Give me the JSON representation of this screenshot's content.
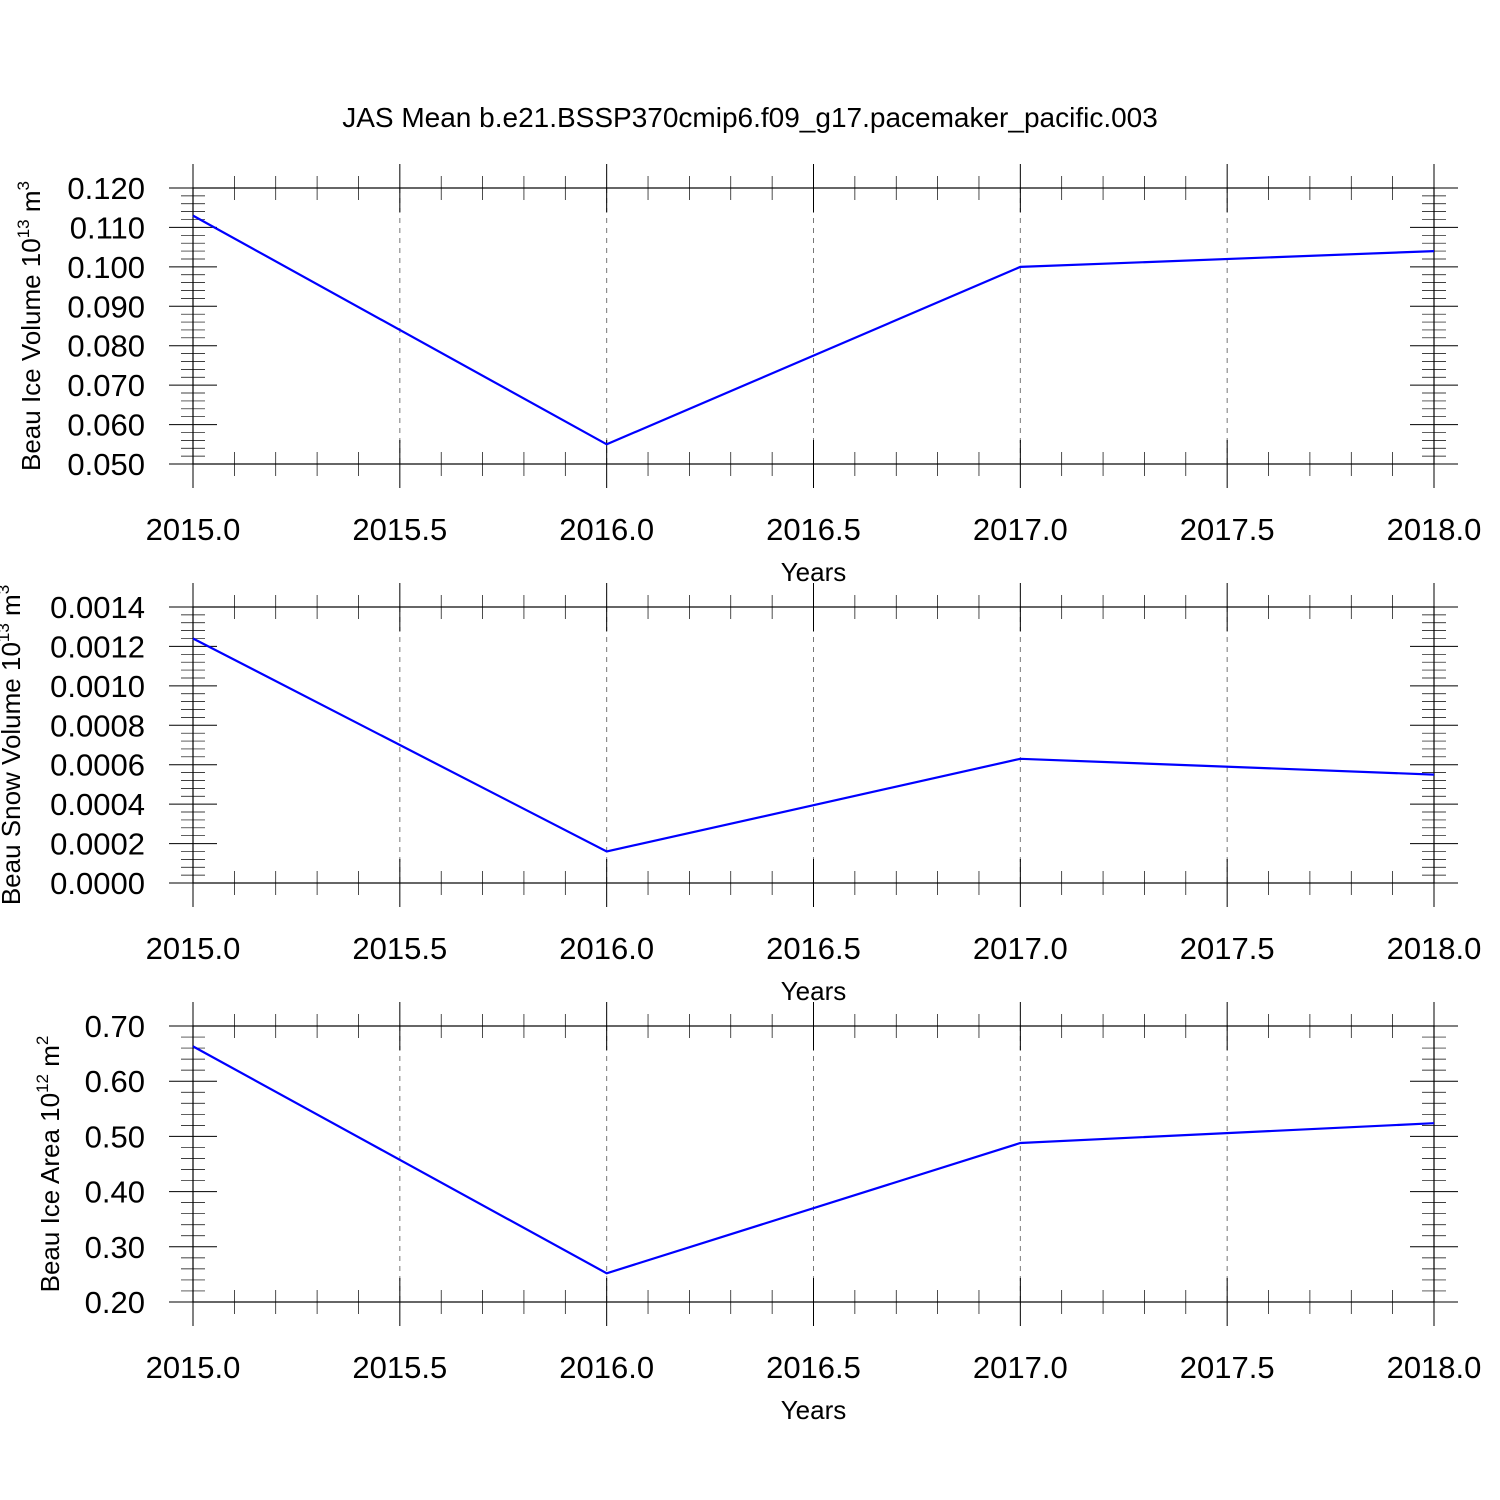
{
  "title": "JAS Mean b.e21.BSSP370cmip6.f09_g17.pacemaker_pacific.003",
  "colors": {
    "series": "#0000ff",
    "grid": "#777777",
    "axes": "#000000"
  },
  "chart_data": [
    {
      "type": "line",
      "ylabel": {
        "text": "Beau Ice Volume 10",
        "exponent": "13",
        "unit": "m",
        "unit_exponent": "3"
      },
      "xlabel": "Years",
      "x": [
        2015.0,
        2016.0,
        2017.0,
        2018.0
      ],
      "series": [
        {
          "values": [
            0.113,
            0.055,
            0.1,
            0.104
          ]
        }
      ],
      "xlim": [
        2015.0,
        2018.0
      ],
      "ylim": [
        0.05,
        0.12
      ],
      "xticks": [
        2015.0,
        2015.5,
        2016.0,
        2016.5,
        2017.0,
        2017.5,
        2018.0
      ],
      "xtick_labels": [
        "2015.0",
        "2015.5",
        "2016.0",
        "2016.5",
        "2017.0",
        "2017.5",
        "2018.0"
      ],
      "yticks": [
        0.05,
        0.06,
        0.07,
        0.08,
        0.09,
        0.1,
        0.11,
        0.12
      ],
      "ytick_labels": [
        "0.050",
        "0.060",
        "0.070",
        "0.080",
        "0.090",
        "0.100",
        "0.110",
        "0.120"
      ],
      "grid": "vertical dashed at x ticks"
    },
    {
      "type": "line",
      "ylabel": {
        "text": "Beau Snow Volume 10",
        "exponent": "13",
        "unit": "m",
        "unit_exponent": "3"
      },
      "xlabel": "Years",
      "x": [
        2015.0,
        2016.0,
        2017.0,
        2018.0
      ],
      "series": [
        {
          "values": [
            0.00124,
            0.00016,
            0.00063,
            0.00055
          ]
        }
      ],
      "xlim": [
        2015.0,
        2018.0
      ],
      "ylim": [
        0.0,
        0.0014
      ],
      "xticks": [
        2015.0,
        2015.5,
        2016.0,
        2016.5,
        2017.0,
        2017.5,
        2018.0
      ],
      "xtick_labels": [
        "2015.0",
        "2015.5",
        "2016.0",
        "2016.5",
        "2017.0",
        "2017.5",
        "2018.0"
      ],
      "yticks": [
        0.0,
        0.0002,
        0.0004,
        0.0006,
        0.0008,
        0.001,
        0.0012,
        0.0014
      ],
      "ytick_labels": [
        "0.0000",
        "0.0002",
        "0.0004",
        "0.0006",
        "0.0008",
        "0.0010",
        "0.0012",
        "0.0014"
      ],
      "grid": "vertical dashed at x ticks"
    },
    {
      "type": "line",
      "ylabel": {
        "text": "Beau Ice Area 10",
        "exponent": "12",
        "unit": "m",
        "unit_exponent": "2"
      },
      "xlabel": "Years",
      "x": [
        2015.0,
        2016.0,
        2017.0,
        2018.0
      ],
      "series": [
        {
          "values": [
            0.663,
            0.252,
            0.488,
            0.524
          ]
        }
      ],
      "xlim": [
        2015.0,
        2018.0
      ],
      "ylim": [
        0.2,
        0.7
      ],
      "xticks": [
        2015.0,
        2015.5,
        2016.0,
        2016.5,
        2017.0,
        2017.5,
        2018.0
      ],
      "xtick_labels": [
        "2015.0",
        "2015.5",
        "2016.0",
        "2016.5",
        "2017.0",
        "2017.5",
        "2018.0"
      ],
      "yticks": [
        0.2,
        0.3,
        0.4,
        0.5,
        0.6,
        0.7
      ],
      "ytick_labels": [
        "0.20",
        "0.30",
        "0.40",
        "0.50",
        "0.60",
        "0.70"
      ],
      "grid": "vertical dashed at x ticks"
    }
  ]
}
